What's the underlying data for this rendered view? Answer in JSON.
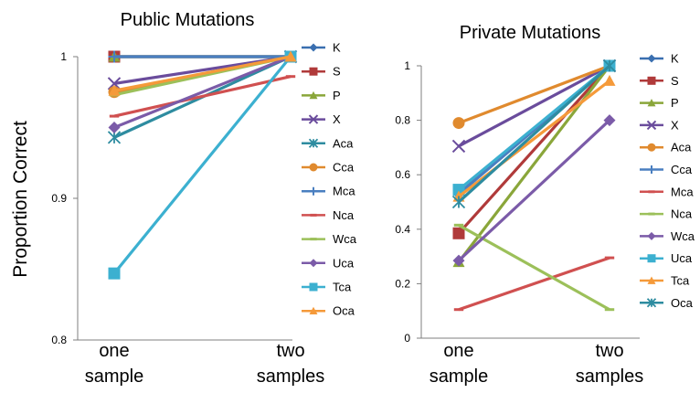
{
  "ylabel": "Proportion Correct",
  "chart_data": [
    {
      "type": "line",
      "title": "Public Mutations",
      "ylabel": "Proportion Correct",
      "categories": [
        "one\nsample",
        "two\nsamples"
      ],
      "ylim": [
        0.8,
        1.0
      ],
      "yticks": [
        "0.8",
        "0.9",
        "1"
      ],
      "grid": false,
      "legend": "right",
      "series": [
        {
          "name": "K",
          "values": [
            1.0,
            1.0
          ],
          "color": "#3a6fb0",
          "marker": "diamond"
        },
        {
          "name": "S",
          "values": [
            1.0,
            1.0
          ],
          "color": "#b03a3a",
          "marker": "square"
        },
        {
          "name": "P",
          "values": [
            1.0,
            1.0
          ],
          "color": "#8aa63a",
          "marker": "triangle"
        },
        {
          "name": "X",
          "values": [
            0.981,
            1.0
          ],
          "color": "#6a4c9c",
          "marker": "x"
        },
        {
          "name": "Aca",
          "values": [
            0.943,
            1.0
          ],
          "color": "#2e8ca0",
          "marker": "star"
        },
        {
          "name": "Cca",
          "values": [
            0.975,
            1.0
          ],
          "color": "#e08a2e",
          "marker": "circle"
        },
        {
          "name": "Mca",
          "values": [
            1.0,
            1.0
          ],
          "color": "#4a7fc0",
          "marker": "plus"
        },
        {
          "name": "Nca",
          "values": [
            0.958,
            0.986
          ],
          "color": "#d05050",
          "marker": "dash"
        },
        {
          "name": "Wca",
          "values": [
            0.973,
            1.0
          ],
          "color": "#9cc05a",
          "marker": "dash"
        },
        {
          "name": "Uca",
          "values": [
            0.95,
            1.0
          ],
          "color": "#7b5ba8",
          "marker": "diamond"
        },
        {
          "name": "Tca",
          "values": [
            0.847,
            1.0
          ],
          "color": "#3cb0d0",
          "marker": "square"
        },
        {
          "name": "Oca",
          "values": [
            0.976,
            1.0
          ],
          "color": "#f59a3a",
          "marker": "triangle"
        }
      ]
    },
    {
      "type": "line",
      "title": "Private Mutations",
      "categories": [
        "one\nsample",
        "two\nsamples"
      ],
      "ylim": [
        0,
        1.0
      ],
      "yticks": [
        "0",
        "0.2",
        "0.4",
        "0.6",
        "0.8",
        "1"
      ],
      "grid": false,
      "legend": "right",
      "series": [
        {
          "name": "K",
          "values": [
            0.53,
            1.0
          ],
          "color": "#3a6fb0",
          "marker": "diamond"
        },
        {
          "name": "S",
          "values": [
            0.385,
            1.0
          ],
          "color": "#b03a3a",
          "marker": "square"
        },
        {
          "name": "P",
          "values": [
            0.28,
            1.0
          ],
          "color": "#8aa63a",
          "marker": "triangle"
        },
        {
          "name": "X",
          "values": [
            0.705,
            1.0
          ],
          "color": "#6a4c9c",
          "marker": "x"
        },
        {
          "name": "Aca",
          "values": [
            0.79,
            1.0
          ],
          "color": "#e08a2e",
          "marker": "circle"
        },
        {
          "name": "Cca",
          "values": [
            0.53,
            1.0
          ],
          "color": "#4a7fc0",
          "marker": "plus"
        },
        {
          "name": "Mca",
          "values": [
            0.105,
            0.295
          ],
          "color": "#d05050",
          "marker": "dash"
        },
        {
          "name": "Nca",
          "values": [
            0.415,
            0.105
          ],
          "color": "#9cc05a",
          "marker": "dash"
        },
        {
          "name": "Wca",
          "values": [
            0.285,
            0.8
          ],
          "color": "#7b5ba8",
          "marker": "diamond"
        },
        {
          "name": "Uca",
          "values": [
            0.545,
            1.0
          ],
          "color": "#3cb0d0",
          "marker": "square"
        },
        {
          "name": "Tca",
          "values": [
            0.52,
            0.945
          ],
          "color": "#f59a3a",
          "marker": "triangle"
        },
        {
          "name": "Oca",
          "values": [
            0.5,
            1.0
          ],
          "color": "#2e8ca0",
          "marker": "star"
        }
      ]
    }
  ]
}
